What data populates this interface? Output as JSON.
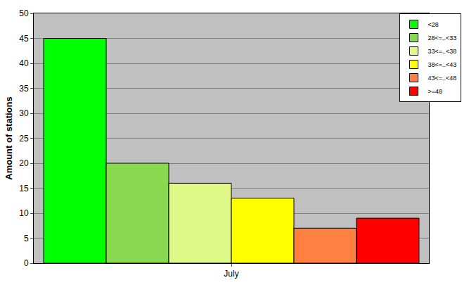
{
  "chart_data": {
    "type": "bar",
    "y_label": "Amount of stations",
    "categories": [
      "July"
    ],
    "series": [
      {
        "name": "<28",
        "color": "#00ff00",
        "values": [
          45
        ]
      },
      {
        "name": "28<=..<33",
        "color": "#88d850",
        "values": [
          20
        ]
      },
      {
        "name": "33<=..<38",
        "color": "#e0f888",
        "values": [
          16
        ]
      },
      {
        "name": "38<=..<43",
        "color": "#ffff00",
        "values": [
          13
        ]
      },
      {
        "name": "43<=..<48",
        "color": "#ff8040",
        "values": [
          7
        ]
      },
      {
        "name": ">=48",
        "color": "#ff0000",
        "values": [
          9
        ]
      }
    ],
    "ylim": [
      0,
      50
    ],
    "yticks": [
      0,
      5,
      10,
      15,
      20,
      25,
      30,
      35,
      40,
      45,
      50
    ],
    "grid": true,
    "legend": "top right"
  }
}
